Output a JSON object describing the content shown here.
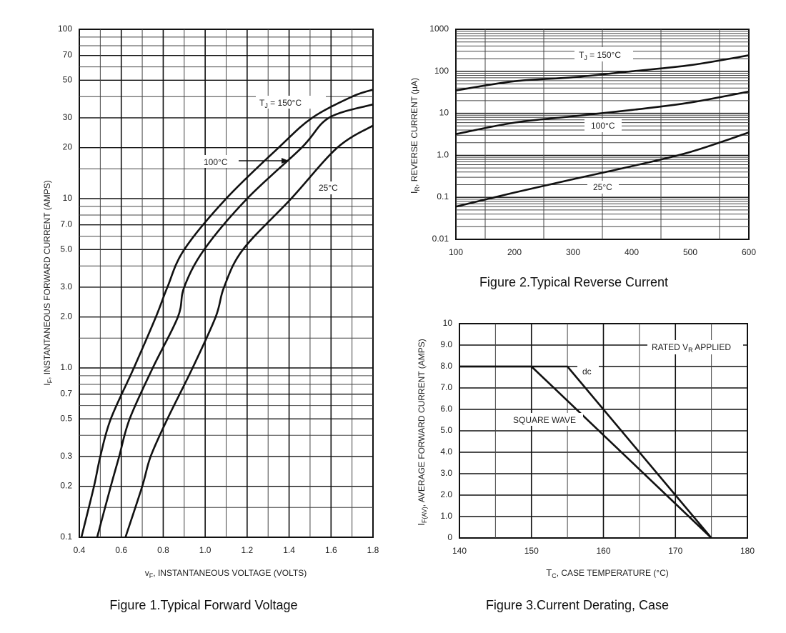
{
  "chart_data": [
    {
      "type": "line",
      "title": "Figure 1.Typical  Forward Voltage",
      "xlabel": {
        "main": "v",
        "sub": "F",
        "rest": ", INSTANTANEOUS VOLTAGE (VOLTS)"
      },
      "ylabel": {
        "main": "I",
        "sub": "F",
        "rest": ", INSTANTANEOUS FORWARD CURRENT (AMPS)"
      },
      "xscale": "linear",
      "yscale": "log",
      "xlim": [
        0.4,
        1.8
      ],
      "ylim": [
        0.1,
        100
      ],
      "xticks": [
        "0.4",
        "0.6",
        "0.8",
        "1.0",
        "1.2",
        "1.4",
        "1.6",
        "1.8"
      ],
      "yticks": [
        "0.1",
        "0.2",
        "0.3",
        "0.5",
        "0.7",
        "1.0",
        "2.0",
        "3.0",
        "5.0",
        "7.0",
        "10",
        "20",
        "30",
        "50",
        "70",
        "100"
      ],
      "grid": true,
      "annotations": {
        "tj150": {
          "main": "T",
          "sub": "J",
          "rest": " = 150°C"
        },
        "t100": "100°C",
        "t25": "25°C"
      },
      "series": [
        {
          "name": "TJ = 150°C",
          "x": [
            0.41,
            0.47,
            0.5,
            0.55,
            0.66,
            0.765,
            0.82,
            0.9,
            1.1,
            1.35,
            1.51,
            1.7,
            1.8
          ],
          "y": [
            0.1,
            0.2,
            0.3,
            0.5,
            1.0,
            2.0,
            3.0,
            5.0,
            10,
            20,
            30,
            40,
            44
          ]
        },
        {
          "name": "100°C",
          "x": [
            0.485,
            0.55,
            0.59,
            0.64,
            0.75,
            0.87,
            0.9,
            0.995,
            1.2,
            1.46,
            1.59,
            1.8
          ],
          "y": [
            0.1,
            0.2,
            0.3,
            0.5,
            1.0,
            2.0,
            3.0,
            5.0,
            10,
            20,
            30,
            36
          ]
        },
        {
          "name": "25°C",
          "x": [
            0.62,
            0.7,
            0.74,
            0.82,
            0.94,
            1.05,
            1.09,
            1.18,
            1.41,
            1.63,
            1.8
          ],
          "y": [
            0.1,
            0.2,
            0.3,
            0.5,
            1.0,
            2.0,
            3.0,
            5.0,
            10,
            20,
            27
          ]
        }
      ]
    },
    {
      "type": "line",
      "title": "Figure 2.Typical  Reverse  Current",
      "xlabel": "",
      "ylabel": {
        "main": "I",
        "sub": "R",
        "rest": ", REVERSE CURRENT (µA)"
      },
      "xscale": "linear",
      "yscale": "log",
      "xlim": [
        100,
        600
      ],
      "ylim": [
        0.01,
        1000
      ],
      "xticks": [
        "100",
        "200",
        "300",
        "400",
        "500",
        "600"
      ],
      "yticks": [
        "0.01",
        "0.1",
        "1.0",
        "10",
        "100",
        "1000"
      ],
      "grid": true,
      "annotations": {
        "tj150": {
          "main": "T",
          "sub": "J",
          "rest": " = 150°C"
        },
        "t100": "100°C",
        "t25": "25°C"
      },
      "series": [
        {
          "name": "TJ = 150°C",
          "x": [
            100,
            200,
            300,
            400,
            500,
            600
          ],
          "y": [
            35,
            58,
            72,
            100,
            140,
            240
          ]
        },
        {
          "name": "100°C",
          "x": [
            100,
            200,
            300,
            400,
            500,
            600
          ],
          "y": [
            3.2,
            6,
            8.5,
            12,
            18,
            33
          ]
        },
        {
          "name": "25°C",
          "x": [
            100,
            200,
            300,
            400,
            500,
            600
          ],
          "y": [
            0.06,
            0.13,
            0.27,
            0.55,
            1.2,
            3.5
          ]
        }
      ]
    },
    {
      "type": "line",
      "title": "Figure 3.Current  Derating,  Case",
      "xlabel": {
        "main": "T",
        "sub": "C",
        "rest": ", CASE TEMPERATURE (°C)"
      },
      "ylabel": {
        "main": "I",
        "sub": "F(AV)",
        "rest": ", AVERAGE FORWARD CURRENT (AMPS)"
      },
      "xscale": "linear",
      "yscale": "linear",
      "xlim": [
        140,
        180
      ],
      "ylim": [
        0,
        10
      ],
      "xticks": [
        "140",
        "150",
        "160",
        "170",
        "180"
      ],
      "yticks": [
        "0",
        "1.0",
        "2.0",
        "3.0",
        "4.0",
        "5.0",
        "6.0",
        "7.0",
        "8.0",
        "9.0",
        "10"
      ],
      "grid": true,
      "annotations": {
        "rated": {
          "main": "RATED V",
          "sub": "R",
          "rest": " APPLIED"
        },
        "dc": "dc",
        "square": "SQUARE WAVE"
      },
      "series": [
        {
          "name": "dc",
          "x": [
            140,
            155,
            175
          ],
          "y": [
            8,
            8,
            0
          ]
        },
        {
          "name": "SQUARE WAVE",
          "x": [
            140,
            150,
            175
          ],
          "y": [
            8,
            8,
            0
          ]
        }
      ]
    }
  ]
}
